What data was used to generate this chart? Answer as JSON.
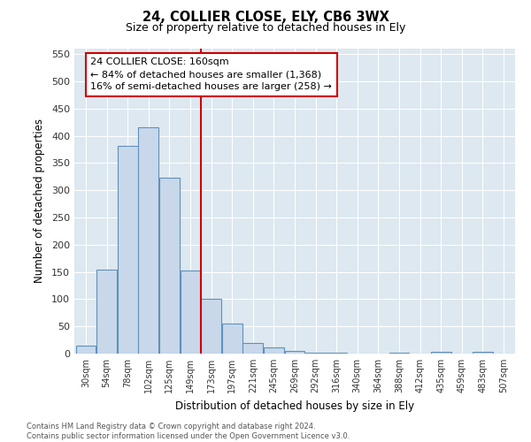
{
  "title1": "24, COLLIER CLOSE, ELY, CB6 3WX",
  "title2": "Size of property relative to detached houses in Ely",
  "xlabel": "Distribution of detached houses by size in Ely",
  "ylabel": "Number of detached properties",
  "bin_labels": [
    "30sqm",
    "54sqm",
    "78sqm",
    "102sqm",
    "125sqm",
    "149sqm",
    "173sqm",
    "197sqm",
    "221sqm",
    "245sqm",
    "269sqm",
    "292sqm",
    "316sqm",
    "340sqm",
    "364sqm",
    "388sqm",
    "412sqm",
    "435sqm",
    "459sqm",
    "483sqm",
    "507sqm"
  ],
  "bar_heights": [
    15,
    155,
    382,
    415,
    323,
    152,
    100,
    55,
    20,
    12,
    5,
    2,
    1,
    0,
    0,
    1,
    0,
    4,
    0,
    4,
    0
  ],
  "bar_color": "#c8d8ea",
  "bar_edge_color": "#6090bb",
  "vline_x_index": 5.5,
  "vline_color": "#cc0000",
  "annotation_text": "24 COLLIER CLOSE: 160sqm\n← 84% of detached houses are smaller (1,368)\n16% of semi-detached houses are larger (258) →",
  "annotation_box_color": "#cc0000",
  "ylim": [
    0,
    560
  ],
  "yticks": [
    0,
    50,
    100,
    150,
    200,
    250,
    300,
    350,
    400,
    450,
    500,
    550
  ],
  "footer_text": "Contains HM Land Registry data © Crown copyright and database right 2024.\nContains public sector information licensed under the Open Government Licence v3.0.",
  "bg_color": "#ffffff",
  "plot_bg_color": "#dde8f0",
  "grid_color": "#ffffff"
}
